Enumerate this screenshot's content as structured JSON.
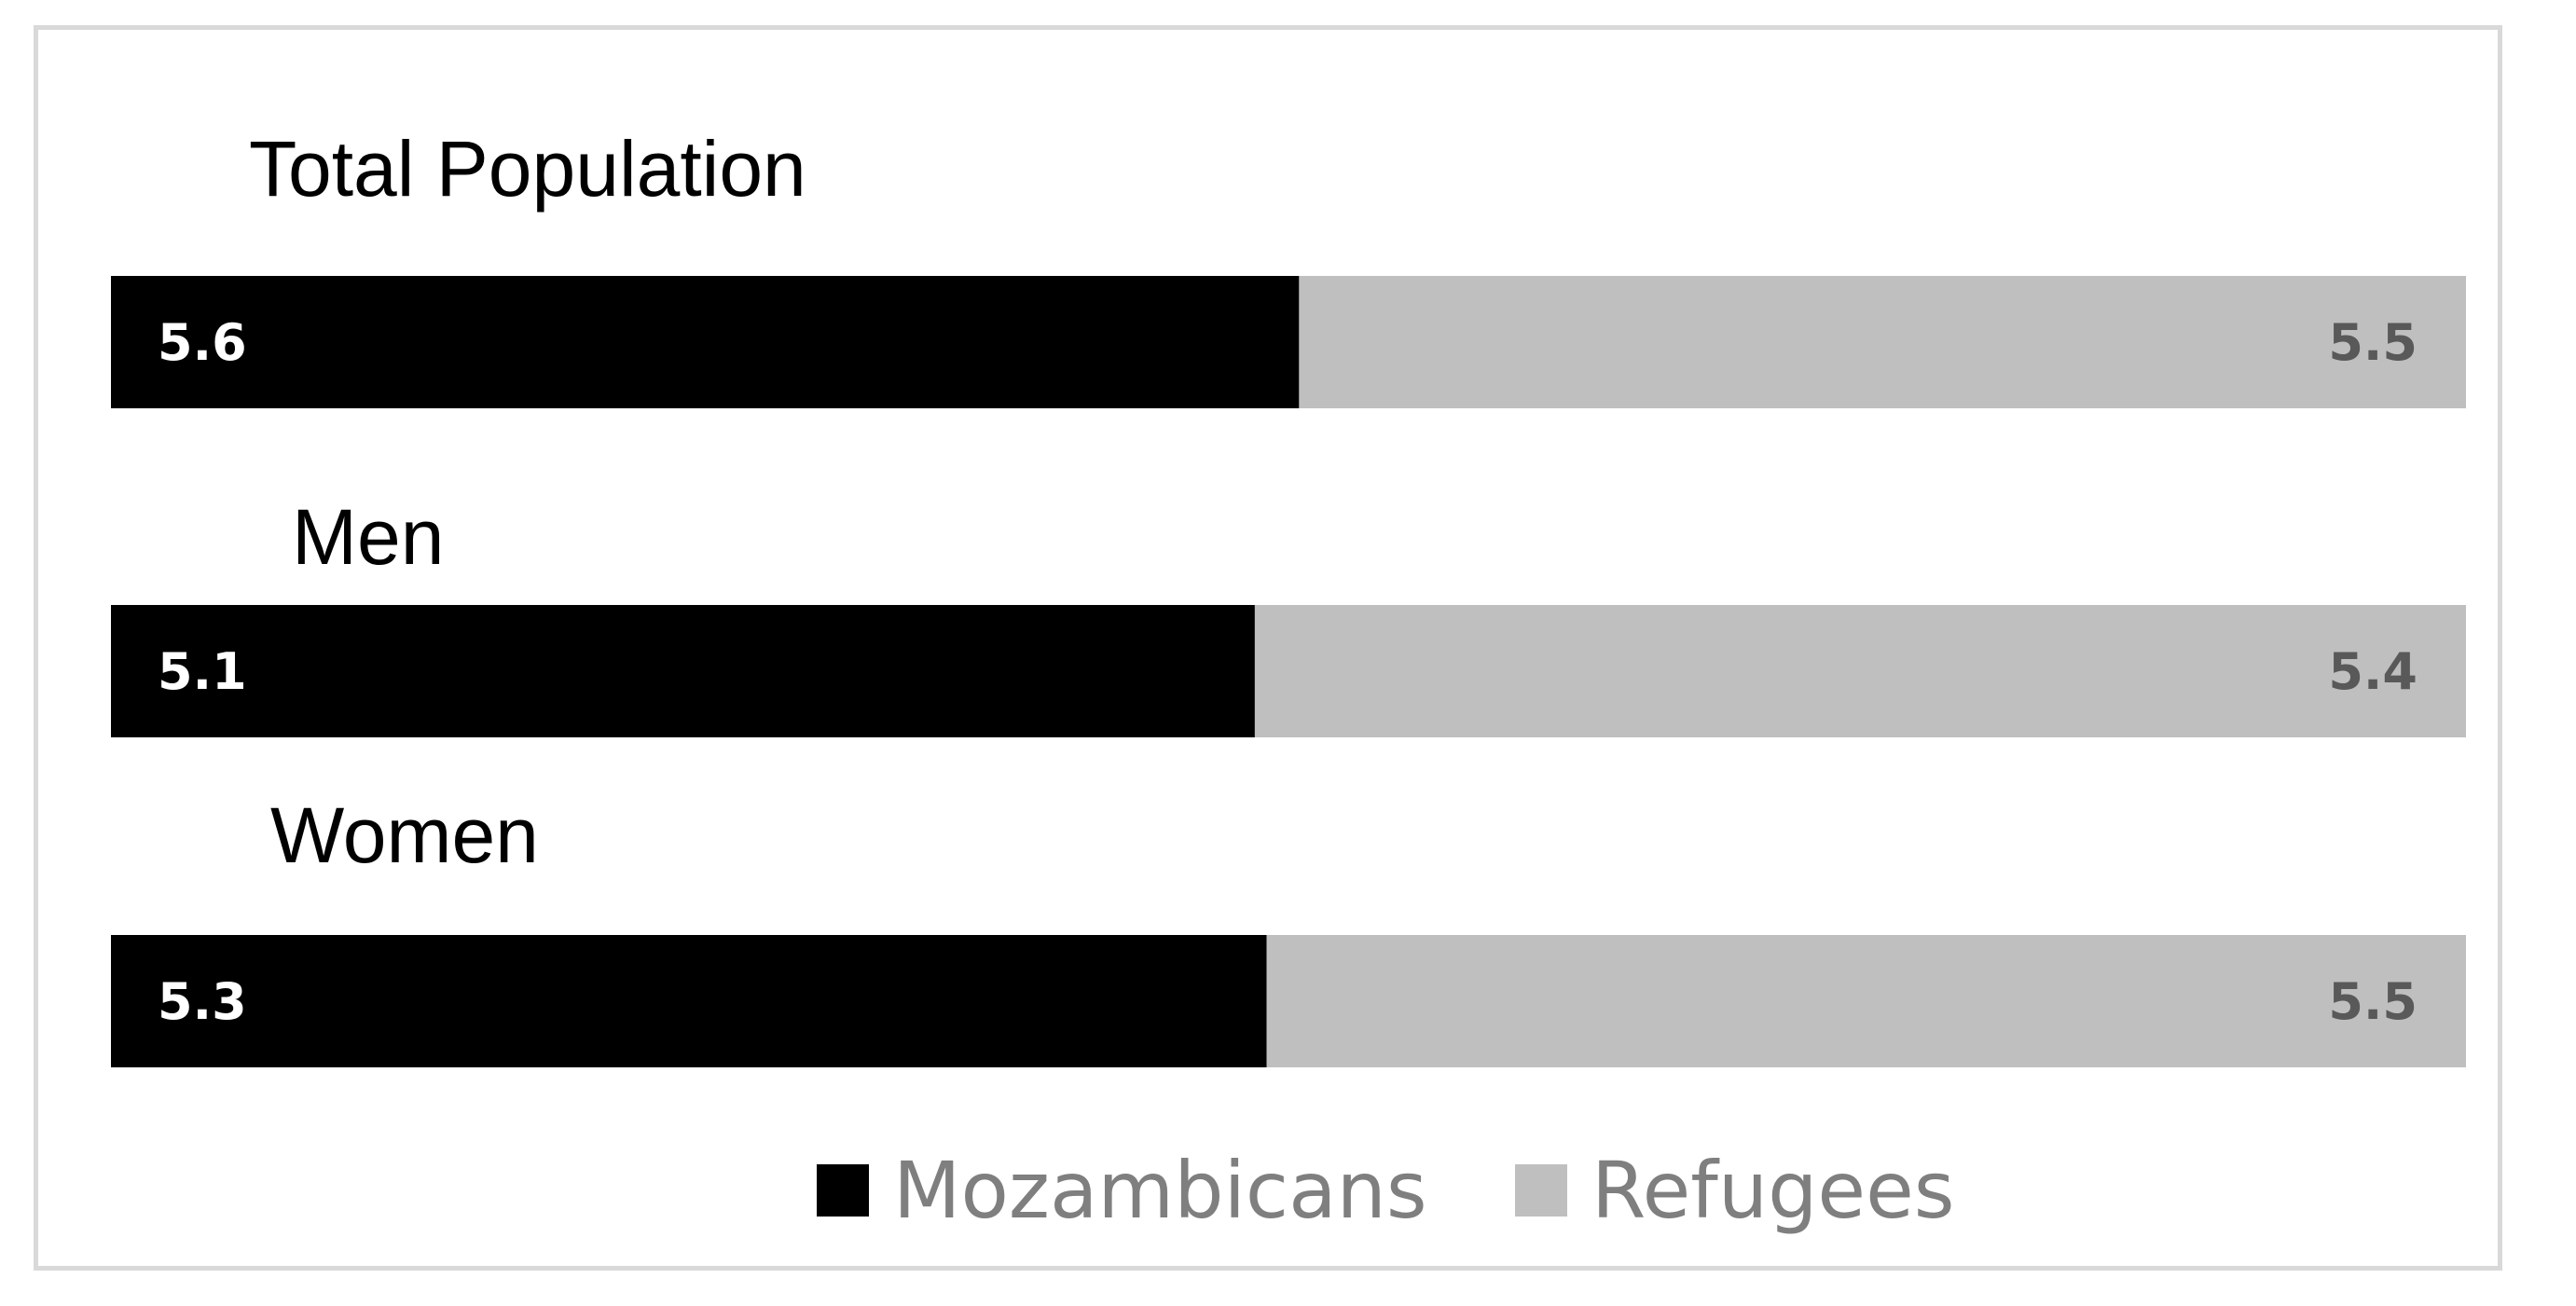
{
  "chart_data": {
    "type": "bar",
    "orientation": "horizontal-stacked",
    "categories": [
      "Total Population",
      "Men",
      "Women"
    ],
    "series": [
      {
        "name": "Mozambicans",
        "values": [
          5.6,
          5.1,
          5.3
        ],
        "color": "#000000",
        "label_color": "#ffffff"
      },
      {
        "name": "Refugees",
        "values": [
          5.5,
          5.4,
          5.5
        ],
        "color": "#bfbfbf",
        "label_color": "#595959"
      }
    ],
    "title": "",
    "xlabel": "",
    "ylabel": "",
    "legend_position": "bottom",
    "grid": false
  }
}
